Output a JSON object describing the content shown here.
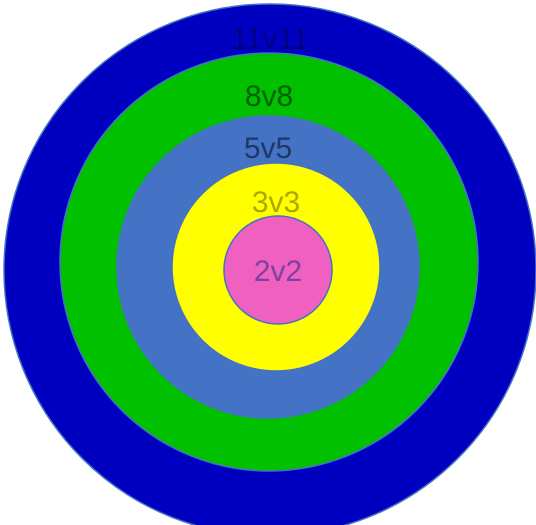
{
  "rings": [
    {
      "label": "11v11",
      "fill": "#0000c0",
      "text_color": "#000080"
    },
    {
      "label": "8v8",
      "fill": "#00c000",
      "text_color": "#006000"
    },
    {
      "label": "5v5",
      "fill": "#4472c4",
      "text_color": "#203864"
    },
    {
      "label": "3v3",
      "fill": "#ffff00",
      "text_color": "#a8a800"
    },
    {
      "label": "2v2",
      "fill": "#f060c0",
      "text_color": "#8040a0"
    }
  ],
  "outline_color": "#4472c4"
}
